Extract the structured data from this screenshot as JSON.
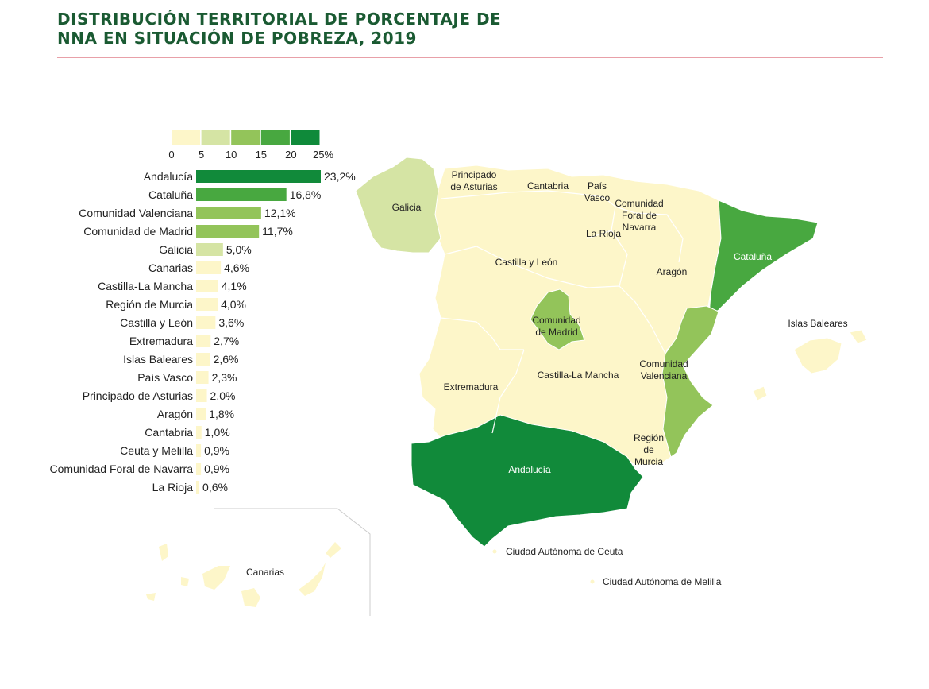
{
  "title_lines": [
    "DISTRIBUCIÓN TERRITORIAL DE PORCENTAJE DE",
    "NNA EN SITUACIÓN DE POBREZA, 2019"
  ],
  "colors": {
    "title": "#1a5a32",
    "rule": "#e8a0a8",
    "scale": [
      "#fdf6c9",
      "#d5e4a4",
      "#93c45a",
      "#48a840",
      "#2f9c3a"
    ],
    "andalucia": "#118a3a",
    "border": "#ffffff"
  },
  "chart_data": {
    "type": "bar",
    "orientation": "horizontal",
    "title": "DISTRIBUCIÓN TERRITORIAL DE PORCENTAJE DE NNA EN SITUACIÓN DE POBREZA, 2019",
    "categories": [
      "Andalucía",
      "Cataluña",
      "Comunidad Valenciana",
      "Comunidad de Madrid",
      "Galicia",
      "Canarias",
      "Castilla-La Mancha",
      "Región de Murcia",
      "Castilla y León",
      "Extremadura",
      "Islas Baleares",
      "País Vasco",
      "Principado de Asturias",
      "Aragón",
      "Cantabria",
      "Ceuta y Melilla",
      "Comunidad Foral de Navarra",
      "La Rioja"
    ],
    "values": [
      23.2,
      16.8,
      12.1,
      11.7,
      5.0,
      4.6,
      4.1,
      4.0,
      3.6,
      2.7,
      2.6,
      2.3,
      2.0,
      1.8,
      1.0,
      0.9,
      0.9,
      0.6
    ],
    "value_labels": [
      "23,2%",
      "16,8%",
      "12,1%",
      "11,7%",
      "5,0%",
      "4,6%",
      "4,1%",
      "4,0%",
      "3,6%",
      "2,7%",
      "2,6%",
      "2,3%",
      "2,0%",
      "1,8%",
      "1,0%",
      "0,9%",
      "0,9%",
      "0,6%"
    ],
    "scale_ticks": [
      "0",
      "5",
      "10",
      "15",
      "20",
      "25%"
    ],
    "scale_bins": [
      0,
      5,
      10,
      15,
      20,
      25
    ],
    "xlim": [
      0,
      25
    ]
  },
  "map_labels": {
    "galicia": "Galicia",
    "asturias": [
      "Principado",
      "de Asturias"
    ],
    "cantabria": "Cantabria",
    "pais_vasco": [
      "País",
      "Vasco"
    ],
    "navarra": [
      "Comunidad",
      "Foral de",
      "Navarra"
    ],
    "la_rioja": "La Rioja",
    "castilla_leon": "Castilla y León",
    "aragon": "Aragón",
    "cataluna": "Cataluña",
    "madrid": [
      "Comunidad",
      "de Madrid"
    ],
    "baleares": "Islas Baleares",
    "valenciana": [
      "Comunidad",
      "Valenciana"
    ],
    "castilla_mancha": "Castilla-La Mancha",
    "extremadura": "Extremadura",
    "murcia": [
      "Región",
      "de",
      "Murcia"
    ],
    "andalucia": "Andalucía",
    "ceuta": "Ciudad Autónoma de Ceuta",
    "melilla": "Ciudad Autónoma de Melilla",
    "canarias": "Canarias"
  }
}
